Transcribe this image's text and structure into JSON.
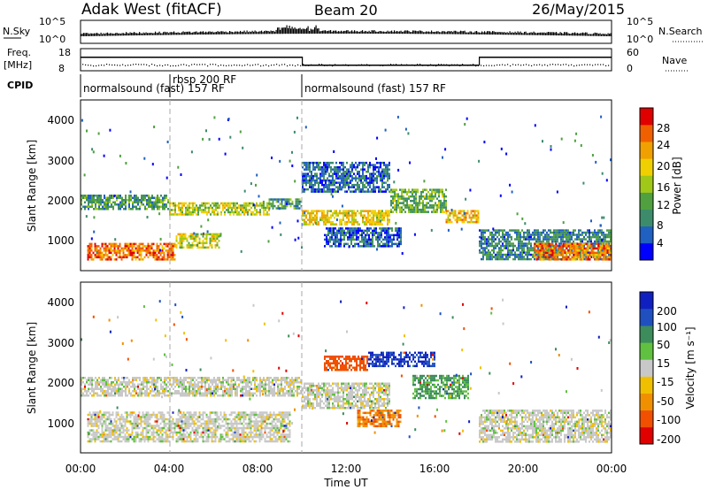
{
  "header": {
    "station": "Adak West (fitACF)",
    "beam": "Beam 20",
    "date": "26/May/2015"
  },
  "summary": {
    "nsky_label": "N.Sky",
    "nsearch_label": "N.Search",
    "freq_label_1": "Freq.",
    "freq_label_2": "[MHz]",
    "nave_label": "Nave",
    "cpid_label": "CPID",
    "nsky_ticks": [
      "10^5",
      "10^0"
    ],
    "nsearch_ticks": [
      "10^5",
      "10^0"
    ],
    "freq_ticks": [
      "18",
      "8"
    ],
    "nave_ticks": [
      "60",
      "0"
    ],
    "cpid_segments": [
      {
        "label": "normalsound (fast) 157 RF",
        "start_hour": 0,
        "end_hour": 3.9
      },
      {
        "label": "rbsp 200 RF",
        "start_hour": 3.9,
        "end_hour": 10.0
      },
      {
        "label": "normalsound (fast) 157 RF",
        "start_hour": 10.0,
        "end_hour": 24
      }
    ],
    "freq_steps": [
      {
        "start_hour": 0,
        "end_hour": 10.0,
        "level": "high"
      },
      {
        "start_hour": 10.0,
        "end_hour": 18.0,
        "level": "low"
      },
      {
        "start_hour": 18.0,
        "end_hour": 24,
        "level": "high"
      }
    ]
  },
  "power_panel": {
    "ylabel": "Slant Range [km]",
    "yticks": [
      "4000",
      "3000",
      "2000",
      "1000"
    ],
    "colorbar_label": "Power [dB]",
    "colorbar_ticks": [
      "28",
      "24",
      "20",
      "16",
      "12",
      "8",
      "4"
    ],
    "colorbar_colors": [
      "#0000ff",
      "#2060c0",
      "#3c8c6c",
      "#50a040",
      "#a0c818",
      "#f0d000",
      "#f0a000",
      "#f06000",
      "#e00000"
    ]
  },
  "velocity_panel": {
    "ylabel": "Slant Range [km]",
    "yticks": [
      "4000",
      "3000",
      "2000",
      "1000"
    ],
    "colorbar_label": "Velocity [m s⁻¹]",
    "colorbar_ticks": [
      "200",
      "100",
      "50",
      "15",
      "-15",
      "-50",
      "-100",
      "-200"
    ],
    "colorbar_colors": [
      "#1020c0",
      "#2050c0",
      "#3c8c5c",
      "#60c040",
      "#c8c8c8",
      "#f0c000",
      "#f09000",
      "#f05000",
      "#e00000"
    ]
  },
  "time_axis": {
    "xlabel": "Time UT",
    "ticks": [
      "00:00",
      "04:00",
      "08:00",
      "12:00",
      "16:00",
      "20:00",
      "00:00"
    ]
  },
  "chart_data": [
    {
      "type": "heatmap",
      "title": "Adak West (fitACF) Beam 20 26/May/2015",
      "xlabel": "Time UT",
      "ylabel": "Slant Range [km]",
      "colorbar": "Power [dB]",
      "xlim": [
        0,
        24
      ],
      "ylim": [
        180,
        4600
      ],
      "zlim": [
        0,
        30
      ],
      "regions": [
        {
          "t0": 0.0,
          "t1": 4.0,
          "r0": 1800,
          "r1": 2150,
          "power": 10
        },
        {
          "t0": 4.0,
          "t1": 8.5,
          "r0": 1650,
          "r1": 1950,
          "power": 16
        },
        {
          "t0": 8.5,
          "t1": 10.0,
          "r0": 1800,
          "r1": 2050,
          "power": 10
        },
        {
          "t0": 0.3,
          "t1": 4.3,
          "r0": 450,
          "r1": 900,
          "power": 24
        },
        {
          "t0": 4.3,
          "t1": 6.3,
          "r0": 750,
          "r1": 1150,
          "power": 16
        },
        {
          "t0": 10.0,
          "t1": 14.0,
          "r0": 1350,
          "r1": 1750,
          "power": 18
        },
        {
          "t0": 14.0,
          "t1": 16.5,
          "r0": 1700,
          "r1": 2300,
          "power": 12
        },
        {
          "t0": 16.5,
          "t1": 18.0,
          "r0": 1450,
          "r1": 1750,
          "power": 20
        },
        {
          "t0": 11.0,
          "t1": 14.5,
          "r0": 800,
          "r1": 1300,
          "power": 6
        },
        {
          "t0": 18.0,
          "t1": 24.0,
          "r0": 500,
          "r1": 1250,
          "power": 8
        },
        {
          "t0": 20.5,
          "t1": 24.0,
          "r0": 450,
          "r1": 900,
          "power": 24
        },
        {
          "t0": 10.0,
          "t1": 14.0,
          "r0": 2200,
          "r1": 3000,
          "power": 6
        }
      ]
    },
    {
      "type": "heatmap",
      "title": "Adak West (fitACF) Beam 20 26/May/2015",
      "xlabel": "Time UT",
      "ylabel": "Slant Range [km]",
      "colorbar": "Velocity [m s⁻¹]",
      "xlim": [
        0,
        24
      ],
      "ylim": [
        180,
        4600
      ],
      "zlim": [
        -200,
        200
      ],
      "regions": [
        {
          "t0": 0.0,
          "t1": 10.0,
          "r0": 1650,
          "r1": 2150,
          "velocity": 0
        },
        {
          "t0": 0.3,
          "t1": 9.5,
          "r0": 450,
          "r1": 1250,
          "velocity": 0
        },
        {
          "t0": 10.0,
          "t1": 14.0,
          "r0": 1350,
          "r1": 2000,
          "velocity": 0
        },
        {
          "t0": 12.5,
          "t1": 14.5,
          "r0": 850,
          "r1": 1300,
          "velocity": -70
        },
        {
          "t0": 11.0,
          "t1": 13.0,
          "r0": 2300,
          "r1": 2700,
          "velocity": -100
        },
        {
          "t0": 13.0,
          "t1": 16.0,
          "r0": 2450,
          "r1": 2800,
          "velocity": 150
        },
        {
          "t0": 15.0,
          "t1": 17.5,
          "r0": 1600,
          "r1": 2200,
          "velocity": 35
        },
        {
          "t0": 18.0,
          "t1": 24.0,
          "r0": 450,
          "r1": 1300,
          "velocity": 0
        }
      ]
    }
  ]
}
